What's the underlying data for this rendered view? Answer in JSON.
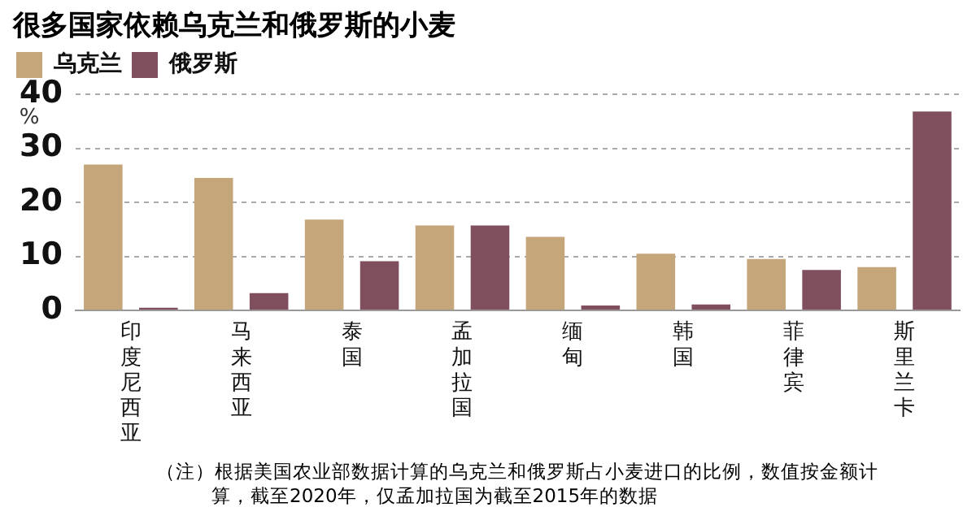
{
  "chart_data": {
    "type": "bar",
    "title": "很多国家依赖乌克兰和俄罗斯的小麦",
    "ylabel": "%",
    "categories": [
      "印度尼西亚",
      "马来西亚",
      "泰国",
      "孟加拉国",
      "缅甸",
      "韩国",
      "菲律宾",
      "斯里兰卡"
    ],
    "series": [
      {
        "name": "乌克兰",
        "color": "#c4a67a",
        "values": [
          27,
          24.5,
          16.8,
          15.7,
          13.6,
          10.5,
          9.5,
          8
        ]
      },
      {
        "name": "俄罗斯",
        "color": "#7f4f5e",
        "values": [
          0.5,
          3.2,
          9.1,
          15.7,
          0.9,
          1.1,
          7.5,
          36.8
        ]
      }
    ],
    "ylim": [
      0,
      40
    ],
    "yticks": [
      0,
      10,
      20,
      30,
      40
    ],
    "grid": "y",
    "legend": "top left",
    "annotations": [
      "（注）根据美国农业部数据计算的乌克兰和俄罗斯占小麦进口的比例，数值按金额计算，截至2020年，仅孟加拉国为截至2015年的数据"
    ]
  }
}
